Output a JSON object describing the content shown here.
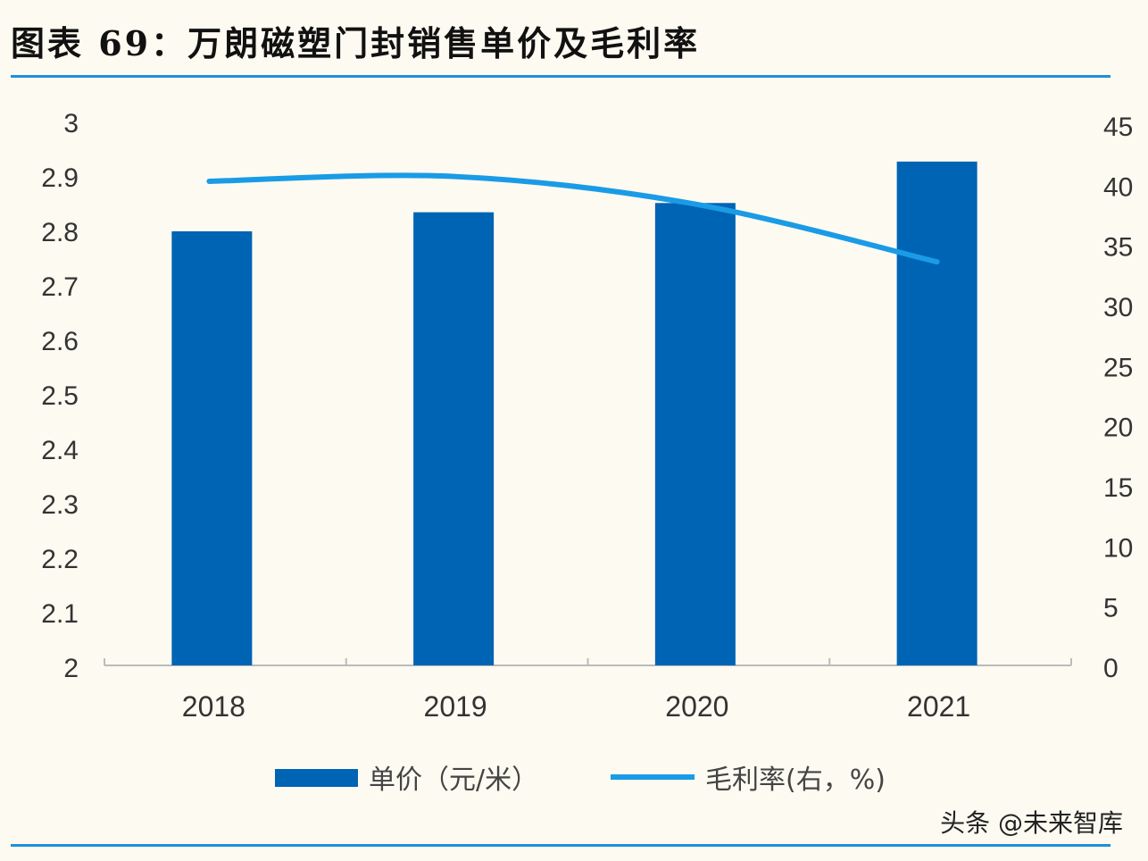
{
  "title": "图表 69：万朗磁塑门封销售单价及毛利率",
  "watermark": "头条 @未来智库",
  "colors": {
    "bar": "#0064b4",
    "line": "#1a9be6",
    "rule": "#1f8fd8"
  },
  "chart_data": {
    "type": "bar+line",
    "categories": [
      "2018",
      "2019",
      "2020",
      "2021"
    ],
    "series": [
      {
        "name": "单价（元/米）",
        "type": "bar",
        "axis": "left",
        "values": [
          2.8,
          2.835,
          2.852,
          2.928
        ]
      },
      {
        "name": "毛利率(右，%)",
        "type": "line",
        "axis": "right",
        "values": [
          40.4,
          40.8,
          38.5,
          33.7
        ]
      }
    ],
    "ylim_left": [
      2,
      3
    ],
    "yticks_left": [
      "2",
      "2.1",
      "2.2",
      "2.3",
      "2.4",
      "2.5",
      "2.6",
      "2.7",
      "2.8",
      "2.9",
      "3"
    ],
    "ylim_right": [
      0,
      45
    ],
    "yticks_right": [
      "0",
      "5",
      "10",
      "15",
      "20",
      "25",
      "30",
      "35",
      "40",
      "45"
    ],
    "legend": "bottom",
    "grid": false
  }
}
